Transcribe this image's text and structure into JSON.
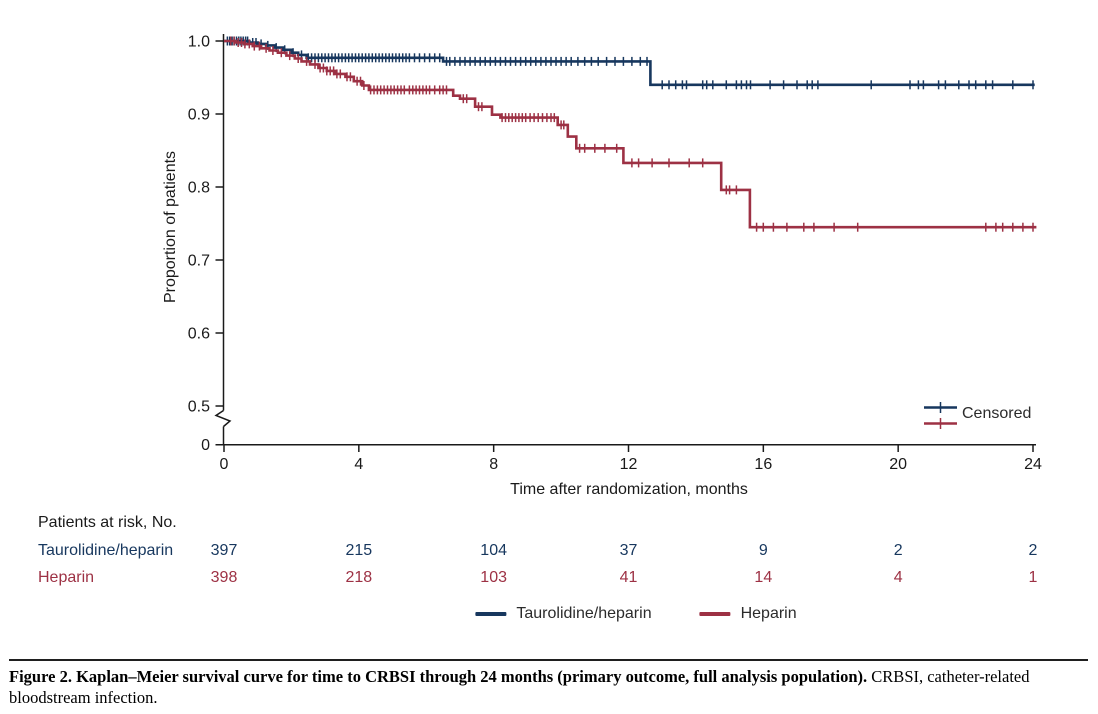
{
  "figure": {
    "caption_bold": "Figure 2. Kaplan–Meier survival curve for time to CRBSI through 24 months (primary outcome, full analysis population).",
    "caption_regular": " CRBSI, catheter-related bloodstream infection."
  },
  "chart_data": {
    "type": "line",
    "subtype": "kaplan-meier-step",
    "title": "",
    "xlabel": "Time after randomization, months",
    "ylabel": "Proportion of patients",
    "censored_label": "Censored",
    "x_ticks": [
      0,
      4,
      8,
      12,
      16,
      20,
      24
    ],
    "y_ticks": [
      1.0,
      0.9,
      0.8,
      0.7,
      0.6,
      0.5
    ],
    "y_zero_label": "0",
    "axis_break": true,
    "xlim": [
      0,
      24
    ],
    "ylim_main": [
      0.45,
      1.0
    ],
    "grid": false,
    "legend_position": "bottom",
    "series": [
      {
        "name": "Taurolidine/heparin",
        "color": "#17375e",
        "steps": [
          [
            0,
            1.0
          ],
          [
            0.75,
            0.998
          ],
          [
            1.0,
            0.996
          ],
          [
            1.25,
            0.994
          ],
          [
            1.5,
            0.991
          ],
          [
            1.75,
            0.988
          ],
          [
            2.0,
            0.984
          ],
          [
            2.2,
            0.981
          ],
          [
            2.45,
            0.977
          ],
          [
            6.5,
            0.972
          ],
          [
            12.65,
            0.94
          ],
          [
            24.05,
            0.94
          ]
        ],
        "censors": [
          0.1,
          0.17,
          0.24,
          0.3,
          0.37,
          0.44,
          0.5,
          0.57,
          0.64,
          0.7,
          0.85,
          0.95,
          1.1,
          1.3,
          1.55,
          1.8,
          2.05,
          2.3,
          2.5,
          2.6,
          2.7,
          2.8,
          2.9,
          3.0,
          3.1,
          3.2,
          3.3,
          3.4,
          3.5,
          3.6,
          3.7,
          3.8,
          3.9,
          4.0,
          4.1,
          4.2,
          4.3,
          4.4,
          4.5,
          4.6,
          4.7,
          4.8,
          4.9,
          5.0,
          5.1,
          5.2,
          5.3,
          5.4,
          5.5,
          5.65,
          5.8,
          5.95,
          6.1,
          6.25,
          6.4,
          6.6,
          6.7,
          6.85,
          7.0,
          7.15,
          7.3,
          7.45,
          7.6,
          7.75,
          7.9,
          8.05,
          8.2,
          8.35,
          8.5,
          8.65,
          8.8,
          8.95,
          9.1,
          9.25,
          9.4,
          9.55,
          9.7,
          9.85,
          10.0,
          10.15,
          10.3,
          10.5,
          10.7,
          10.9,
          11.1,
          11.35,
          11.6,
          11.85,
          12.1,
          12.35,
          12.55,
          13.0,
          13.2,
          13.4,
          13.6,
          13.72,
          14.2,
          14.32,
          14.5,
          14.9,
          15.2,
          15.35,
          15.5,
          15.62,
          16.2,
          16.6,
          17.0,
          17.3,
          17.45,
          17.62,
          19.2,
          20.35,
          20.6,
          20.75,
          21.2,
          21.4,
          21.8,
          22.1,
          22.3,
          22.6,
          22.8,
          23.4,
          24.0
        ]
      },
      {
        "name": "Heparin",
        "color": "#9d3144",
        "steps": [
          [
            0,
            1.0
          ],
          [
            0.35,
            0.998
          ],
          [
            0.6,
            0.996
          ],
          [
            0.85,
            0.993
          ],
          [
            1.1,
            0.99
          ],
          [
            1.35,
            0.987
          ],
          [
            1.6,
            0.984
          ],
          [
            1.85,
            0.98
          ],
          [
            2.1,
            0.976
          ],
          [
            2.3,
            0.972
          ],
          [
            2.55,
            0.968
          ],
          [
            2.8,
            0.963
          ],
          [
            3.05,
            0.959
          ],
          [
            3.3,
            0.955
          ],
          [
            3.6,
            0.951
          ],
          [
            3.85,
            0.945
          ],
          [
            4.1,
            0.939
          ],
          [
            4.3,
            0.933
          ],
          [
            6.8,
            0.925
          ],
          [
            7.0,
            0.921
          ],
          [
            7.45,
            0.91
          ],
          [
            7.95,
            0.899
          ],
          [
            8.2,
            0.895
          ],
          [
            9.9,
            0.885
          ],
          [
            10.2,
            0.869
          ],
          [
            10.45,
            0.853
          ],
          [
            11.85,
            0.833
          ],
          [
            14.75,
            0.796
          ],
          [
            15.6,
            0.745
          ],
          [
            24.1,
            0.745
          ]
        ],
        "censors": [
          0.2,
          0.3,
          0.42,
          0.52,
          0.62,
          0.75,
          0.9,
          1.05,
          1.25,
          1.45,
          1.7,
          1.95,
          2.2,
          2.45,
          2.7,
          2.85,
          2.95,
          3.05,
          3.15,
          3.25,
          3.35,
          3.45,
          3.65,
          3.75,
          3.95,
          4.05,
          4.15,
          4.35,
          4.45,
          4.55,
          4.65,
          4.75,
          4.85,
          4.95,
          5.05,
          5.15,
          5.25,
          5.35,
          5.5,
          5.6,
          5.7,
          5.8,
          5.9,
          6.0,
          6.1,
          6.25,
          6.4,
          6.5,
          6.6,
          7.1,
          7.2,
          7.55,
          7.65,
          8.25,
          8.35,
          8.45,
          8.55,
          8.65,
          8.75,
          8.85,
          8.95,
          9.08,
          9.2,
          9.32,
          9.45,
          9.58,
          9.7,
          9.8,
          10.0,
          10.08,
          10.55,
          10.7,
          11.0,
          11.3,
          11.65,
          12.1,
          12.3,
          12.7,
          13.2,
          13.8,
          14.2,
          14.9,
          15.0,
          15.2,
          15.8,
          16.0,
          16.3,
          16.7,
          17.2,
          17.5,
          18.1,
          18.8,
          22.6,
          22.9,
          23.1,
          23.4,
          23.7,
          24.0
        ]
      }
    ],
    "risk_table": {
      "header": "Patients at risk, No.",
      "months": [
        0,
        4,
        8,
        12,
        16,
        20,
        24
      ],
      "rows": [
        {
          "name": "Taurolidine/heparin",
          "color": "#17375e",
          "values": [
            397,
            215,
            104,
            37,
            9,
            2,
            2
          ]
        },
        {
          "name": "Heparin",
          "color": "#9d3144",
          "values": [
            398,
            218,
            103,
            41,
            14,
            4,
            1
          ]
        }
      ]
    },
    "axis_color": "#1a1a1a"
  }
}
